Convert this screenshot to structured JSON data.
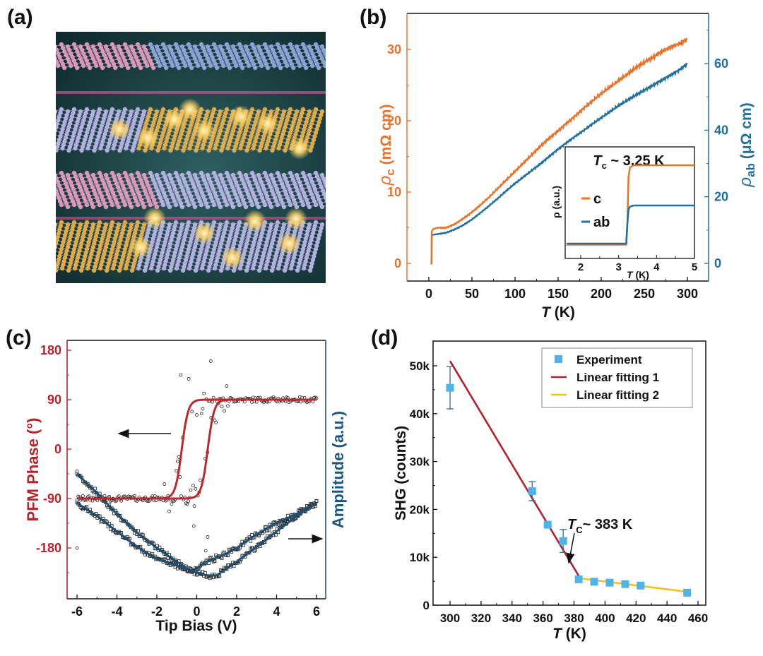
{
  "panel_labels": {
    "a": "(a)",
    "b": "(b)",
    "c": "(c)",
    "d": "(d)"
  },
  "panel_a": {
    "description": "Illustration of stacked layered crystal lattices (pink/blue layers alternating with gold/lavender layers with glowing spots)",
    "colors": {
      "background": "#0f2a2e",
      "pink_atoms": "#e59ac0",
      "blue_atoms": "#8fa6dd",
      "gold_atoms": "#e8b04a",
      "lavender_atoms": "#b8b4e8",
      "glow": "#ffd56a"
    }
  },
  "chart_data": [
    {
      "id": "b",
      "type": "line",
      "xlabel": "T (K)",
      "ylabel_left": "ρc (mΩ cm)",
      "ylabel_right": "ρab (μΩ cm)",
      "xlim": [
        -25,
        310
      ],
      "ylim_left": [
        -2.5,
        35
      ],
      "ylim_right": [
        -5.3,
        74.5
      ],
      "xticks": [
        0,
        50,
        100,
        150,
        200,
        250,
        300
      ],
      "yticks_left": [
        0,
        10,
        20,
        30
      ],
      "yticks_right": [
        0,
        20,
        40,
        60
      ],
      "colors": {
        "c": "#e8732a",
        "ab": "#1f6f9f"
      },
      "series": [
        {
          "name": "c",
          "axis": "left",
          "x": [
            2,
            3.2,
            3.4,
            5,
            10,
            20,
            30,
            40,
            50,
            60,
            70,
            80,
            90,
            100,
            110,
            120,
            130,
            140,
            150,
            160,
            170,
            180,
            190,
            200,
            210,
            220,
            230,
            240,
            250,
            260,
            270,
            280,
            290,
            300
          ],
          "y": [
            0,
            0,
            4.5,
            4.8,
            5.0,
            5.0,
            5.5,
            6.3,
            7.2,
            8.2,
            9.3,
            10.5,
            11.7,
            12.9,
            14.1,
            15.3,
            16.5,
            17.6,
            18.6,
            19.7,
            20.7,
            21.8,
            22.8,
            23.8,
            24.7,
            25.6,
            26.5,
            27.4,
            28.2,
            28.9,
            29.7,
            30.3,
            30.8,
            31.4
          ]
        },
        {
          "name": "ab",
          "axis": "right",
          "x": [
            2,
            3.2,
            3.4,
            5,
            10,
            20,
            30,
            40,
            50,
            60,
            70,
            80,
            90,
            100,
            110,
            120,
            130,
            140,
            150,
            160,
            170,
            180,
            190,
            200,
            210,
            220,
            230,
            240,
            250,
            260,
            270,
            280,
            290,
            300
          ],
          "y": [
            0,
            0,
            8.5,
            8.6,
            8.8,
            9.2,
            10.2,
            11.5,
            13.2,
            15.2,
            17.3,
            19.5,
            21.8,
            24.0,
            26.0,
            28.0,
            30.0,
            32.2,
            34.3,
            36.3,
            38.2,
            40.0,
            41.9,
            43.7,
            45.5,
            47.3,
            48.9,
            50.5,
            52.0,
            53.5,
            55.0,
            56.5,
            58.0,
            60.0
          ]
        }
      ],
      "inset": {
        "title": "Tc ~ 3.25 K",
        "xlabel": "T (K)",
        "ylabel": "ρ (a.u.)",
        "xlim": [
          1.55,
          5
        ],
        "ylim": [
          0,
          1
        ],
        "xticks": [
          2,
          3,
          4,
          5
        ],
        "legend": [
          "c",
          "ab"
        ],
        "series": [
          {
            "name": "c",
            "x": [
              1.6,
              3.2,
              3.23,
              3.26,
              3.3,
              3.4,
              5
            ],
            "y": [
              0.11,
              0.11,
              0.3,
              0.75,
              0.84,
              0.86,
              0.86
            ]
          },
          {
            "name": "ab",
            "x": [
              1.6,
              3.2,
              3.23,
              3.26,
              3.3,
              3.4,
              5
            ],
            "y": [
              0.12,
              0.12,
              0.3,
              0.44,
              0.47,
              0.48,
              0.48
            ]
          }
        ]
      }
    },
    {
      "id": "c",
      "type": "scatter",
      "xlabel": "Tip Bias (V)",
      "ylabel_left": "PFM Phase (°)",
      "ylabel_right": "Amplitude (a.u.)",
      "xlim": [
        -6.5,
        6.5
      ],
      "ylim_left": [
        -275,
        195
      ],
      "xticks": [
        -6,
        -4,
        -2,
        0,
        2,
        4,
        6
      ],
      "yticks_left": [
        180,
        90,
        0,
        -90,
        -180
      ],
      "colors": {
        "phase_fit": "#c0272d",
        "amplitude_fit": "#1d4f73",
        "points": "#222222",
        "left_axis": "#b8232b",
        "right_axis": "#1d5680"
      },
      "phase_loop": {
        "coercive_negative": -0.75,
        "coercive_positive": 0.55,
        "low": -90,
        "high": 90
      },
      "amplitude_loop_equiv_deg": {
        "branch_1": {
          "x": [
            -6,
            -5,
            -4,
            -3,
            -2,
            -1,
            -0.3,
            0.5,
            1,
            2,
            3,
            4,
            5,
            6
          ],
          "y": [
            -45,
            -80,
            -118,
            -152,
            -180,
            -205,
            -222,
            -230,
            -230,
            -205,
            -178,
            -150,
            -122,
            -98
          ]
        },
        "branch_2": {
          "x": [
            -6,
            -5,
            -4,
            -3,
            -2,
            -1,
            -0.2,
            0.5,
            1.5,
            2,
            3,
            4,
            5,
            6
          ],
          "y": [
            -98,
            -122,
            -150,
            -178,
            -200,
            -212,
            -222,
            -205,
            -190,
            -180,
            -155,
            -135,
            -118,
            -98
          ]
        }
      },
      "annotations": [
        {
          "type": "arrow",
          "direction": "left",
          "meaning": "phase on left axis"
        },
        {
          "type": "arrow",
          "direction": "right",
          "meaning": "amplitude on right axis"
        }
      ]
    },
    {
      "id": "d",
      "type": "scatter",
      "xlabel": "T (K)",
      "ylabel": "SHG  (counts)",
      "xlim": [
        290,
        463
      ],
      "ylim": [
        0,
        55000
      ],
      "xticks": [
        300,
        320,
        340,
        360,
        380,
        400,
        420,
        440,
        460
      ],
      "yticks": [
        0,
        10000,
        20000,
        30000,
        40000,
        50000
      ],
      "ytick_labels": [
        "0",
        "10k",
        "20k",
        "30k",
        "40k",
        "50k"
      ],
      "legend": [
        "Experiment",
        "Linear fitting 1",
        "Linear fitting 2"
      ],
      "legend_position": "top-right",
      "colors": {
        "experiment": "#4fb3ea",
        "fit1": "#b0222a",
        "fit2": "#eec31c"
      },
      "experiment": {
        "x": [
          300,
          353,
          363,
          373,
          383,
          393,
          403,
          413,
          423,
          453
        ],
        "y": [
          45400,
          23800,
          16800,
          13400,
          5400,
          4900,
          4700,
          4400,
          4100,
          2600
        ],
        "err": [
          4400,
          2000,
          500,
          2400,
          400,
          400,
          400,
          400,
          400,
          400
        ]
      },
      "fit1": {
        "x": [
          300,
          384
        ],
        "y": [
          51000,
          5600
        ]
      },
      "fit2": {
        "x": [
          384,
          453
        ],
        "y": [
          5600,
          2800
        ]
      },
      "annotation": {
        "text_main": "T",
        "text_sub": "C",
        "text_rest": "~ 383 K",
        "arrow_to": [
          384,
          5800
        ]
      }
    }
  ]
}
